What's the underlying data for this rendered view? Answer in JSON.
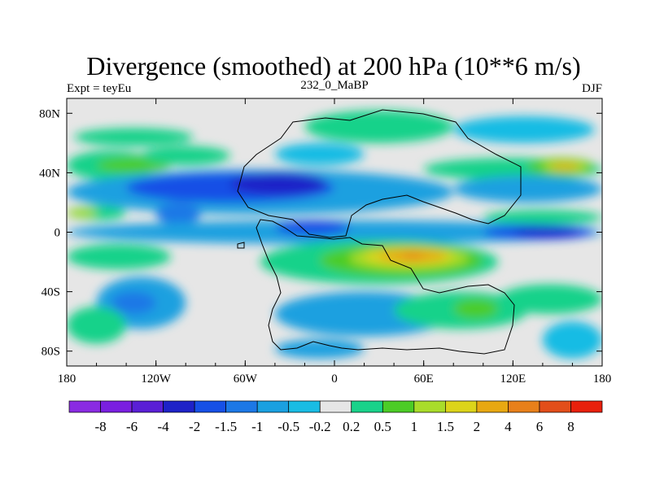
{
  "chart_data": {
    "type": "heatmap",
    "title": "Divergence (smoothed) at 200 hPa (10**6 m/s)",
    "subtitle_left": "Expt = teyEu",
    "subtitle_center": "232_0_MaBP",
    "subtitle_right": "DJF",
    "x_range": [
      -180,
      180
    ],
    "y_range": [
      -90,
      90
    ],
    "x_ticks": [
      {
        "value": -180,
        "label": "180"
      },
      {
        "value": -120,
        "label": "120W"
      },
      {
        "value": -60,
        "label": "60W"
      },
      {
        "value": 0,
        "label": "0"
      },
      {
        "value": 60,
        "label": "60E"
      },
      {
        "value": 120,
        "label": "120E"
      },
      {
        "value": 180,
        "label": "180"
      }
    ],
    "y_ticks": [
      {
        "value": 80,
        "label": "80N"
      },
      {
        "value": 40,
        "label": "40N"
      },
      {
        "value": 0,
        "label": "0"
      },
      {
        "value": -40,
        "label": "40S"
      },
      {
        "value": -80,
        "label": "80S"
      }
    ],
    "colorbar": {
      "colors": [
        "#8a2be2",
        "#7a1fe0",
        "#5a1fd6",
        "#1e22c8",
        "#1650e6",
        "#1c78e6",
        "#1aa0e0",
        "#19bce4",
        "#e6e6e6",
        "#19d28a",
        "#4ccc26",
        "#a9dc2a",
        "#dcd41a",
        "#e8a812",
        "#e8801a",
        "#e24e1a",
        "#e8200c"
      ],
      "labels": [
        "-8",
        "-6",
        "-4",
        "-2",
        "-1.5",
        "-1",
        "-0.5",
        "-0.2",
        "0.2",
        "0.5",
        "1",
        "1.5",
        "2",
        "4",
        "6",
        "8"
      ]
    },
    "level_colors": {
      "L-4": "#1e22c8",
      "L-3": "#1650e6",
      "L-2": "#1c78e6",
      "L-1": "#1aa0e0",
      "L0": "#19bce4",
      "L1": "#19d28a",
      "L2": "#4ccc26",
      "L3": "#a9dc2a",
      "L4": "#dcd41a",
      "L5": "#e8a812",
      "L6": "#e8801a"
    },
    "field_regions": [
      {
        "level": "L1",
        "lon": [
          -175,
          -95
        ],
        "lat": [
          58,
          70
        ]
      },
      {
        "level": "L1",
        "lon": [
          -20,
          80
        ],
        "lat": [
          60,
          82
        ]
      },
      {
        "level": "L0",
        "lon": [
          80,
          175
        ],
        "lat": [
          60,
          78
        ]
      },
      {
        "level": "L1",
        "lon": [
          -180,
          -120
        ],
        "lat": [
          35,
          55
        ]
      },
      {
        "level": "L2",
        "lon": [
          -160,
          -110
        ],
        "lat": [
          40,
          50
        ]
      },
      {
        "level": "L1",
        "lon": [
          -130,
          -70
        ],
        "lat": [
          45,
          58
        ]
      },
      {
        "level": "L0",
        "lon": [
          -40,
          20
        ],
        "lat": [
          45,
          60
        ]
      },
      {
        "level": "L-1",
        "lon": [
          -180,
          80
        ],
        "lat": [
          12,
          42
        ]
      },
      {
        "level": "L-3",
        "lon": [
          -140,
          0
        ],
        "lat": [
          20,
          40
        ]
      },
      {
        "level": "L-4",
        "lon": [
          -70,
          -5
        ],
        "lat": [
          25,
          40
        ]
      },
      {
        "level": "L-2",
        "lon": [
          -120,
          -90
        ],
        "lat": [
          5,
          20
        ]
      },
      {
        "level": "L1",
        "lon": [
          60,
          180
        ],
        "lat": [
          35,
          50
        ]
      },
      {
        "level": "L2",
        "lon": [
          130,
          175
        ],
        "lat": [
          38,
          50
        ]
      },
      {
        "level": "L3",
        "lon": [
          140,
          170
        ],
        "lat": [
          40,
          48
        ]
      },
      {
        "level": "L5",
        "lon": [
          145,
          165
        ],
        "lat": [
          42,
          46
        ]
      },
      {
        "level": "L-1",
        "lon": [
          80,
          180
        ],
        "lat": [
          20,
          38
        ]
      },
      {
        "level": "L1",
        "lon": [
          -180,
          -140
        ],
        "lat": [
          8,
          18
        ]
      },
      {
        "level": "L3",
        "lon": [
          -180,
          -160
        ],
        "lat": [
          10,
          16
        ]
      },
      {
        "level": "L1",
        "lon": [
          100,
          180
        ],
        "lat": [
          5,
          15
        ]
      },
      {
        "level": "L-1",
        "lon": [
          -180,
          180
        ],
        "lat": [
          -8,
          8
        ]
      },
      {
        "level": "L-3",
        "lon": [
          100,
          175
        ],
        "lat": [
          -5,
          5
        ]
      },
      {
        "level": "L-4",
        "lon": [
          120,
          165
        ],
        "lat": [
          -3,
          3
        ]
      },
      {
        "level": "L-3",
        "lon": [
          -40,
          10
        ],
        "lat": [
          -2,
          8
        ]
      },
      {
        "level": "L1",
        "lon": [
          -180,
          -110
        ],
        "lat": [
          -25,
          -8
        ]
      },
      {
        "level": "L1",
        "lon": [
          -50,
          110
        ],
        "lat": [
          -35,
          -5
        ]
      },
      {
        "level": "L2",
        "lon": [
          -10,
          100
        ],
        "lat": [
          -30,
          -8
        ]
      },
      {
        "level": "L3",
        "lon": [
          10,
          90
        ],
        "lat": [
          -25,
          -10
        ]
      },
      {
        "level": "L4",
        "lon": [
          20,
          80
        ],
        "lat": [
          -22,
          -10
        ]
      },
      {
        "level": "L5",
        "lon": [
          30,
          75
        ],
        "lat": [
          -20,
          -12
        ]
      },
      {
        "level": "L6",
        "lon": [
          45,
          60
        ],
        "lat": [
          -18,
          -14
        ]
      },
      {
        "level": "L-1",
        "lon": [
          -160,
          -100
        ],
        "lat": [
          -65,
          -30
        ]
      },
      {
        "level": "L-2",
        "lon": [
          -150,
          -120
        ],
        "lat": [
          -55,
          -40
        ]
      },
      {
        "level": "L1",
        "lon": [
          -180,
          -140
        ],
        "lat": [
          -75,
          -50
        ]
      },
      {
        "level": "L-1",
        "lon": [
          -40,
          80
        ],
        "lat": [
          -70,
          -40
        ]
      },
      {
        "level": "L1",
        "lon": [
          40,
          130
        ],
        "lat": [
          -65,
          -40
        ]
      },
      {
        "level": "L2",
        "lon": [
          80,
          110
        ],
        "lat": [
          -58,
          -45
        ]
      },
      {
        "level": "L1",
        "lon": [
          110,
          180
        ],
        "lat": [
          -55,
          -35
        ]
      },
      {
        "level": "L0",
        "lon": [
          140,
          180
        ],
        "lat": [
          -85,
          -60
        ]
      },
      {
        "level": "L-1",
        "lon": [
          -40,
          20
        ],
        "lat": [
          -85,
          -72
        ]
      }
    ]
  }
}
